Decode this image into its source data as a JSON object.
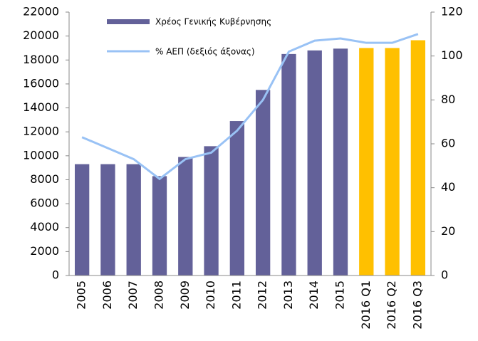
{
  "chart_data": {
    "type": "bar_line",
    "categories": [
      "2005",
      "2006",
      "2007",
      "2008",
      "2009",
      "2010",
      "2011",
      "2012",
      "2013",
      "2014",
      "2015",
      "2016 Q1",
      "2016 Q2",
      "2016 Q3"
    ],
    "series": [
      {
        "name": "Χρέος Γενικής Κυβέρνησης",
        "type": "bar",
        "color": "#636199",
        "colors": [
          "#636199",
          "#636199",
          "#636199",
          "#636199",
          "#636199",
          "#636199",
          "#636199",
          "#636199",
          "#636199",
          "#636199",
          "#636199",
          "#ffc000",
          "#ffc000",
          "#ffc000"
        ],
        "values": [
          9300,
          9300,
          9300,
          8300,
          9900,
          10800,
          12900,
          15500,
          18500,
          18800,
          18950,
          19000,
          19000,
          19650
        ]
      },
      {
        "name": "% ΑΕΠ (δεξιός άξονας)",
        "type": "line",
        "axis": "y2",
        "color": "#99c2f5",
        "values": [
          63,
          58,
          53,
          44,
          53,
          56,
          66,
          80,
          102,
          107,
          108,
          106,
          106,
          110
        ]
      }
    ],
    "ylim": [
      0,
      22000
    ],
    "yticks": [
      0,
      2000,
      4000,
      6000,
      8000,
      10000,
      12000,
      14000,
      16000,
      18000,
      20000,
      22000
    ],
    "y2lim": [
      0,
      120
    ],
    "y2ticks": [
      0,
      20,
      40,
      60,
      80,
      100,
      120
    ]
  }
}
